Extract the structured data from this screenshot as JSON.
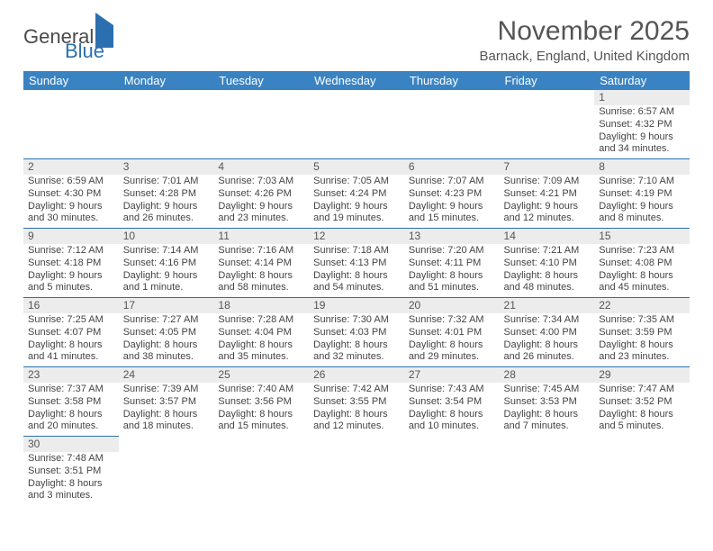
{
  "logo": {
    "word1": "General",
    "word2": "Blue"
  },
  "title": "November 2025",
  "location": "Barnack, England, United Kingdom",
  "colors": {
    "header_bg": "#3a83c3",
    "daynum_bg": "#ececec",
    "rule": "#2b6fb0",
    "text": "#444444"
  },
  "weekdays": [
    "Sunday",
    "Monday",
    "Tuesday",
    "Wednesday",
    "Thursday",
    "Friday",
    "Saturday"
  ],
  "weeks": [
    [
      null,
      null,
      null,
      null,
      null,
      null,
      {
        "n": "1",
        "sr": "Sunrise: 6:57 AM",
        "ss": "Sunset: 4:32 PM",
        "d1": "Daylight: 9 hours",
        "d2": "and 34 minutes."
      }
    ],
    [
      {
        "n": "2",
        "sr": "Sunrise: 6:59 AM",
        "ss": "Sunset: 4:30 PM",
        "d1": "Daylight: 9 hours",
        "d2": "and 30 minutes."
      },
      {
        "n": "3",
        "sr": "Sunrise: 7:01 AM",
        "ss": "Sunset: 4:28 PM",
        "d1": "Daylight: 9 hours",
        "d2": "and 26 minutes."
      },
      {
        "n": "4",
        "sr": "Sunrise: 7:03 AM",
        "ss": "Sunset: 4:26 PM",
        "d1": "Daylight: 9 hours",
        "d2": "and 23 minutes."
      },
      {
        "n": "5",
        "sr": "Sunrise: 7:05 AM",
        "ss": "Sunset: 4:24 PM",
        "d1": "Daylight: 9 hours",
        "d2": "and 19 minutes."
      },
      {
        "n": "6",
        "sr": "Sunrise: 7:07 AM",
        "ss": "Sunset: 4:23 PM",
        "d1": "Daylight: 9 hours",
        "d2": "and 15 minutes."
      },
      {
        "n": "7",
        "sr": "Sunrise: 7:09 AM",
        "ss": "Sunset: 4:21 PM",
        "d1": "Daylight: 9 hours",
        "d2": "and 12 minutes."
      },
      {
        "n": "8",
        "sr": "Sunrise: 7:10 AM",
        "ss": "Sunset: 4:19 PM",
        "d1": "Daylight: 9 hours",
        "d2": "and 8 minutes."
      }
    ],
    [
      {
        "n": "9",
        "sr": "Sunrise: 7:12 AM",
        "ss": "Sunset: 4:18 PM",
        "d1": "Daylight: 9 hours",
        "d2": "and 5 minutes."
      },
      {
        "n": "10",
        "sr": "Sunrise: 7:14 AM",
        "ss": "Sunset: 4:16 PM",
        "d1": "Daylight: 9 hours",
        "d2": "and 1 minute."
      },
      {
        "n": "11",
        "sr": "Sunrise: 7:16 AM",
        "ss": "Sunset: 4:14 PM",
        "d1": "Daylight: 8 hours",
        "d2": "and 58 minutes."
      },
      {
        "n": "12",
        "sr": "Sunrise: 7:18 AM",
        "ss": "Sunset: 4:13 PM",
        "d1": "Daylight: 8 hours",
        "d2": "and 54 minutes."
      },
      {
        "n": "13",
        "sr": "Sunrise: 7:20 AM",
        "ss": "Sunset: 4:11 PM",
        "d1": "Daylight: 8 hours",
        "d2": "and 51 minutes."
      },
      {
        "n": "14",
        "sr": "Sunrise: 7:21 AM",
        "ss": "Sunset: 4:10 PM",
        "d1": "Daylight: 8 hours",
        "d2": "and 48 minutes."
      },
      {
        "n": "15",
        "sr": "Sunrise: 7:23 AM",
        "ss": "Sunset: 4:08 PM",
        "d1": "Daylight: 8 hours",
        "d2": "and 45 minutes."
      }
    ],
    [
      {
        "n": "16",
        "sr": "Sunrise: 7:25 AM",
        "ss": "Sunset: 4:07 PM",
        "d1": "Daylight: 8 hours",
        "d2": "and 41 minutes."
      },
      {
        "n": "17",
        "sr": "Sunrise: 7:27 AM",
        "ss": "Sunset: 4:05 PM",
        "d1": "Daylight: 8 hours",
        "d2": "and 38 minutes."
      },
      {
        "n": "18",
        "sr": "Sunrise: 7:28 AM",
        "ss": "Sunset: 4:04 PM",
        "d1": "Daylight: 8 hours",
        "d2": "and 35 minutes."
      },
      {
        "n": "19",
        "sr": "Sunrise: 7:30 AM",
        "ss": "Sunset: 4:03 PM",
        "d1": "Daylight: 8 hours",
        "d2": "and 32 minutes."
      },
      {
        "n": "20",
        "sr": "Sunrise: 7:32 AM",
        "ss": "Sunset: 4:01 PM",
        "d1": "Daylight: 8 hours",
        "d2": "and 29 minutes."
      },
      {
        "n": "21",
        "sr": "Sunrise: 7:34 AM",
        "ss": "Sunset: 4:00 PM",
        "d1": "Daylight: 8 hours",
        "d2": "and 26 minutes."
      },
      {
        "n": "22",
        "sr": "Sunrise: 7:35 AM",
        "ss": "Sunset: 3:59 PM",
        "d1": "Daylight: 8 hours",
        "d2": "and 23 minutes."
      }
    ],
    [
      {
        "n": "23",
        "sr": "Sunrise: 7:37 AM",
        "ss": "Sunset: 3:58 PM",
        "d1": "Daylight: 8 hours",
        "d2": "and 20 minutes."
      },
      {
        "n": "24",
        "sr": "Sunrise: 7:39 AM",
        "ss": "Sunset: 3:57 PM",
        "d1": "Daylight: 8 hours",
        "d2": "and 18 minutes."
      },
      {
        "n": "25",
        "sr": "Sunrise: 7:40 AM",
        "ss": "Sunset: 3:56 PM",
        "d1": "Daylight: 8 hours",
        "d2": "and 15 minutes."
      },
      {
        "n": "26",
        "sr": "Sunrise: 7:42 AM",
        "ss": "Sunset: 3:55 PM",
        "d1": "Daylight: 8 hours",
        "d2": "and 12 minutes."
      },
      {
        "n": "27",
        "sr": "Sunrise: 7:43 AM",
        "ss": "Sunset: 3:54 PM",
        "d1": "Daylight: 8 hours",
        "d2": "and 10 minutes."
      },
      {
        "n": "28",
        "sr": "Sunrise: 7:45 AM",
        "ss": "Sunset: 3:53 PM",
        "d1": "Daylight: 8 hours",
        "d2": "and 7 minutes."
      },
      {
        "n": "29",
        "sr": "Sunrise: 7:47 AM",
        "ss": "Sunset: 3:52 PM",
        "d1": "Daylight: 8 hours",
        "d2": "and 5 minutes."
      }
    ],
    [
      {
        "n": "30",
        "sr": "Sunrise: 7:48 AM",
        "ss": "Sunset: 3:51 PM",
        "d1": "Daylight: 8 hours",
        "d2": "and 3 minutes."
      },
      null,
      null,
      null,
      null,
      null,
      null
    ]
  ]
}
